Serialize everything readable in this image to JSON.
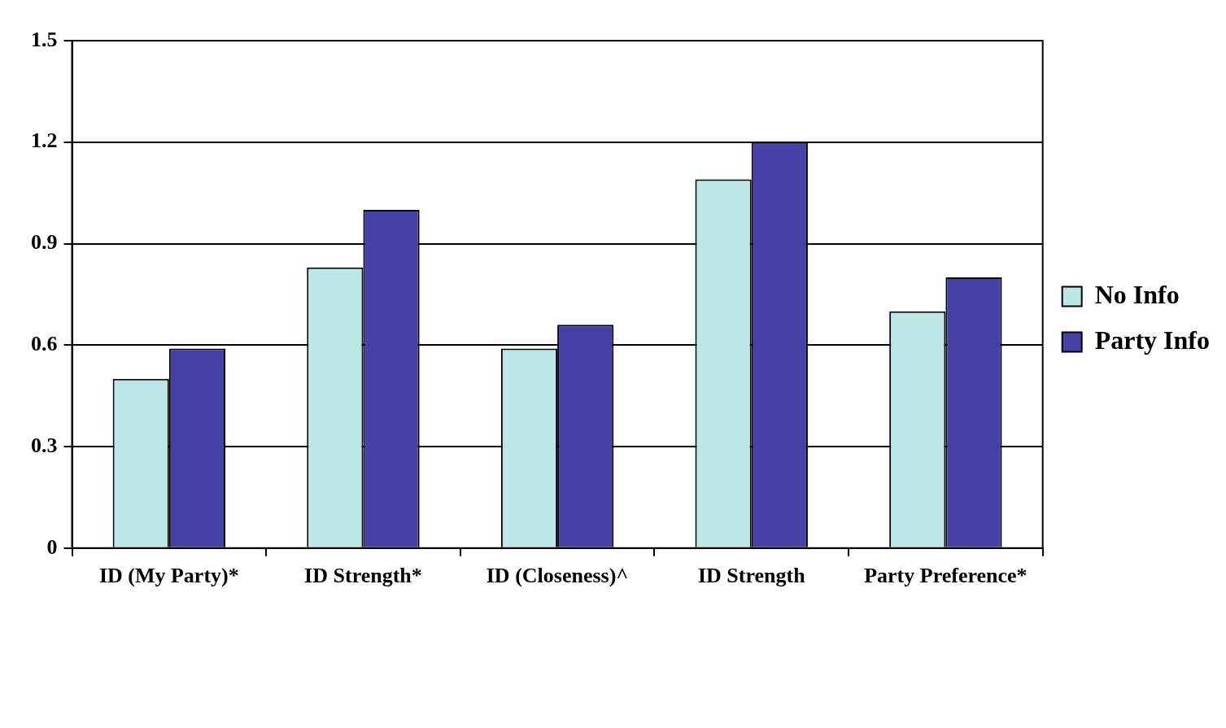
{
  "chart_data": {
    "type": "bar",
    "categories": [
      "ID (My Party)*",
      "ID Strength*",
      "ID (Closeness)^",
      "ID Strength",
      "Party Preference*"
    ],
    "series": [
      {
        "name": "No Info",
        "color": "#bde6e6",
        "values": [
          0.5,
          0.83,
          0.59,
          1.09,
          0.7
        ]
      },
      {
        "name": "Party Info",
        "color": "#4641a6",
        "values": [
          0.59,
          1.0,
          0.66,
          1.2,
          0.8
        ]
      }
    ],
    "ylim": [
      0,
      1.5
    ],
    "yticks": [
      0,
      0.3,
      0.6,
      0.9,
      1.2,
      1.5
    ],
    "grid": "y",
    "legend": "right"
  }
}
